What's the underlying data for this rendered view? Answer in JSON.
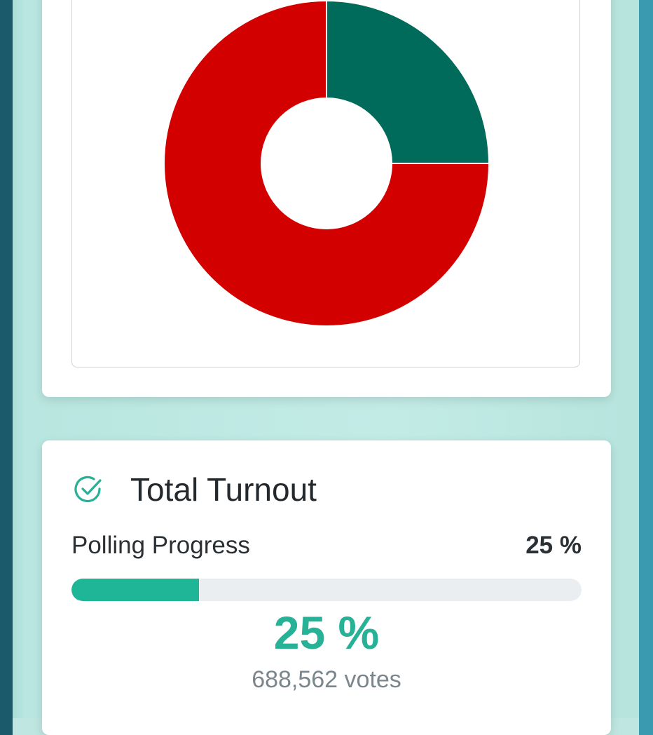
{
  "chart_data": {
    "type": "pie",
    "variant": "donut",
    "slices": [
      {
        "value": 25,
        "color": "#006b5b"
      },
      {
        "value": 75,
        "color": "#d30000"
      }
    ]
  },
  "turnout": {
    "title": "Total Turnout",
    "icon": "check-circle-icon",
    "progress_label": "Polling Progress",
    "progress_percent_text": "25 %",
    "progress_fraction": 0.25,
    "big_percent_text": "25 %",
    "votes_text": "688,562 votes",
    "accent_color": "#1fb597"
  }
}
